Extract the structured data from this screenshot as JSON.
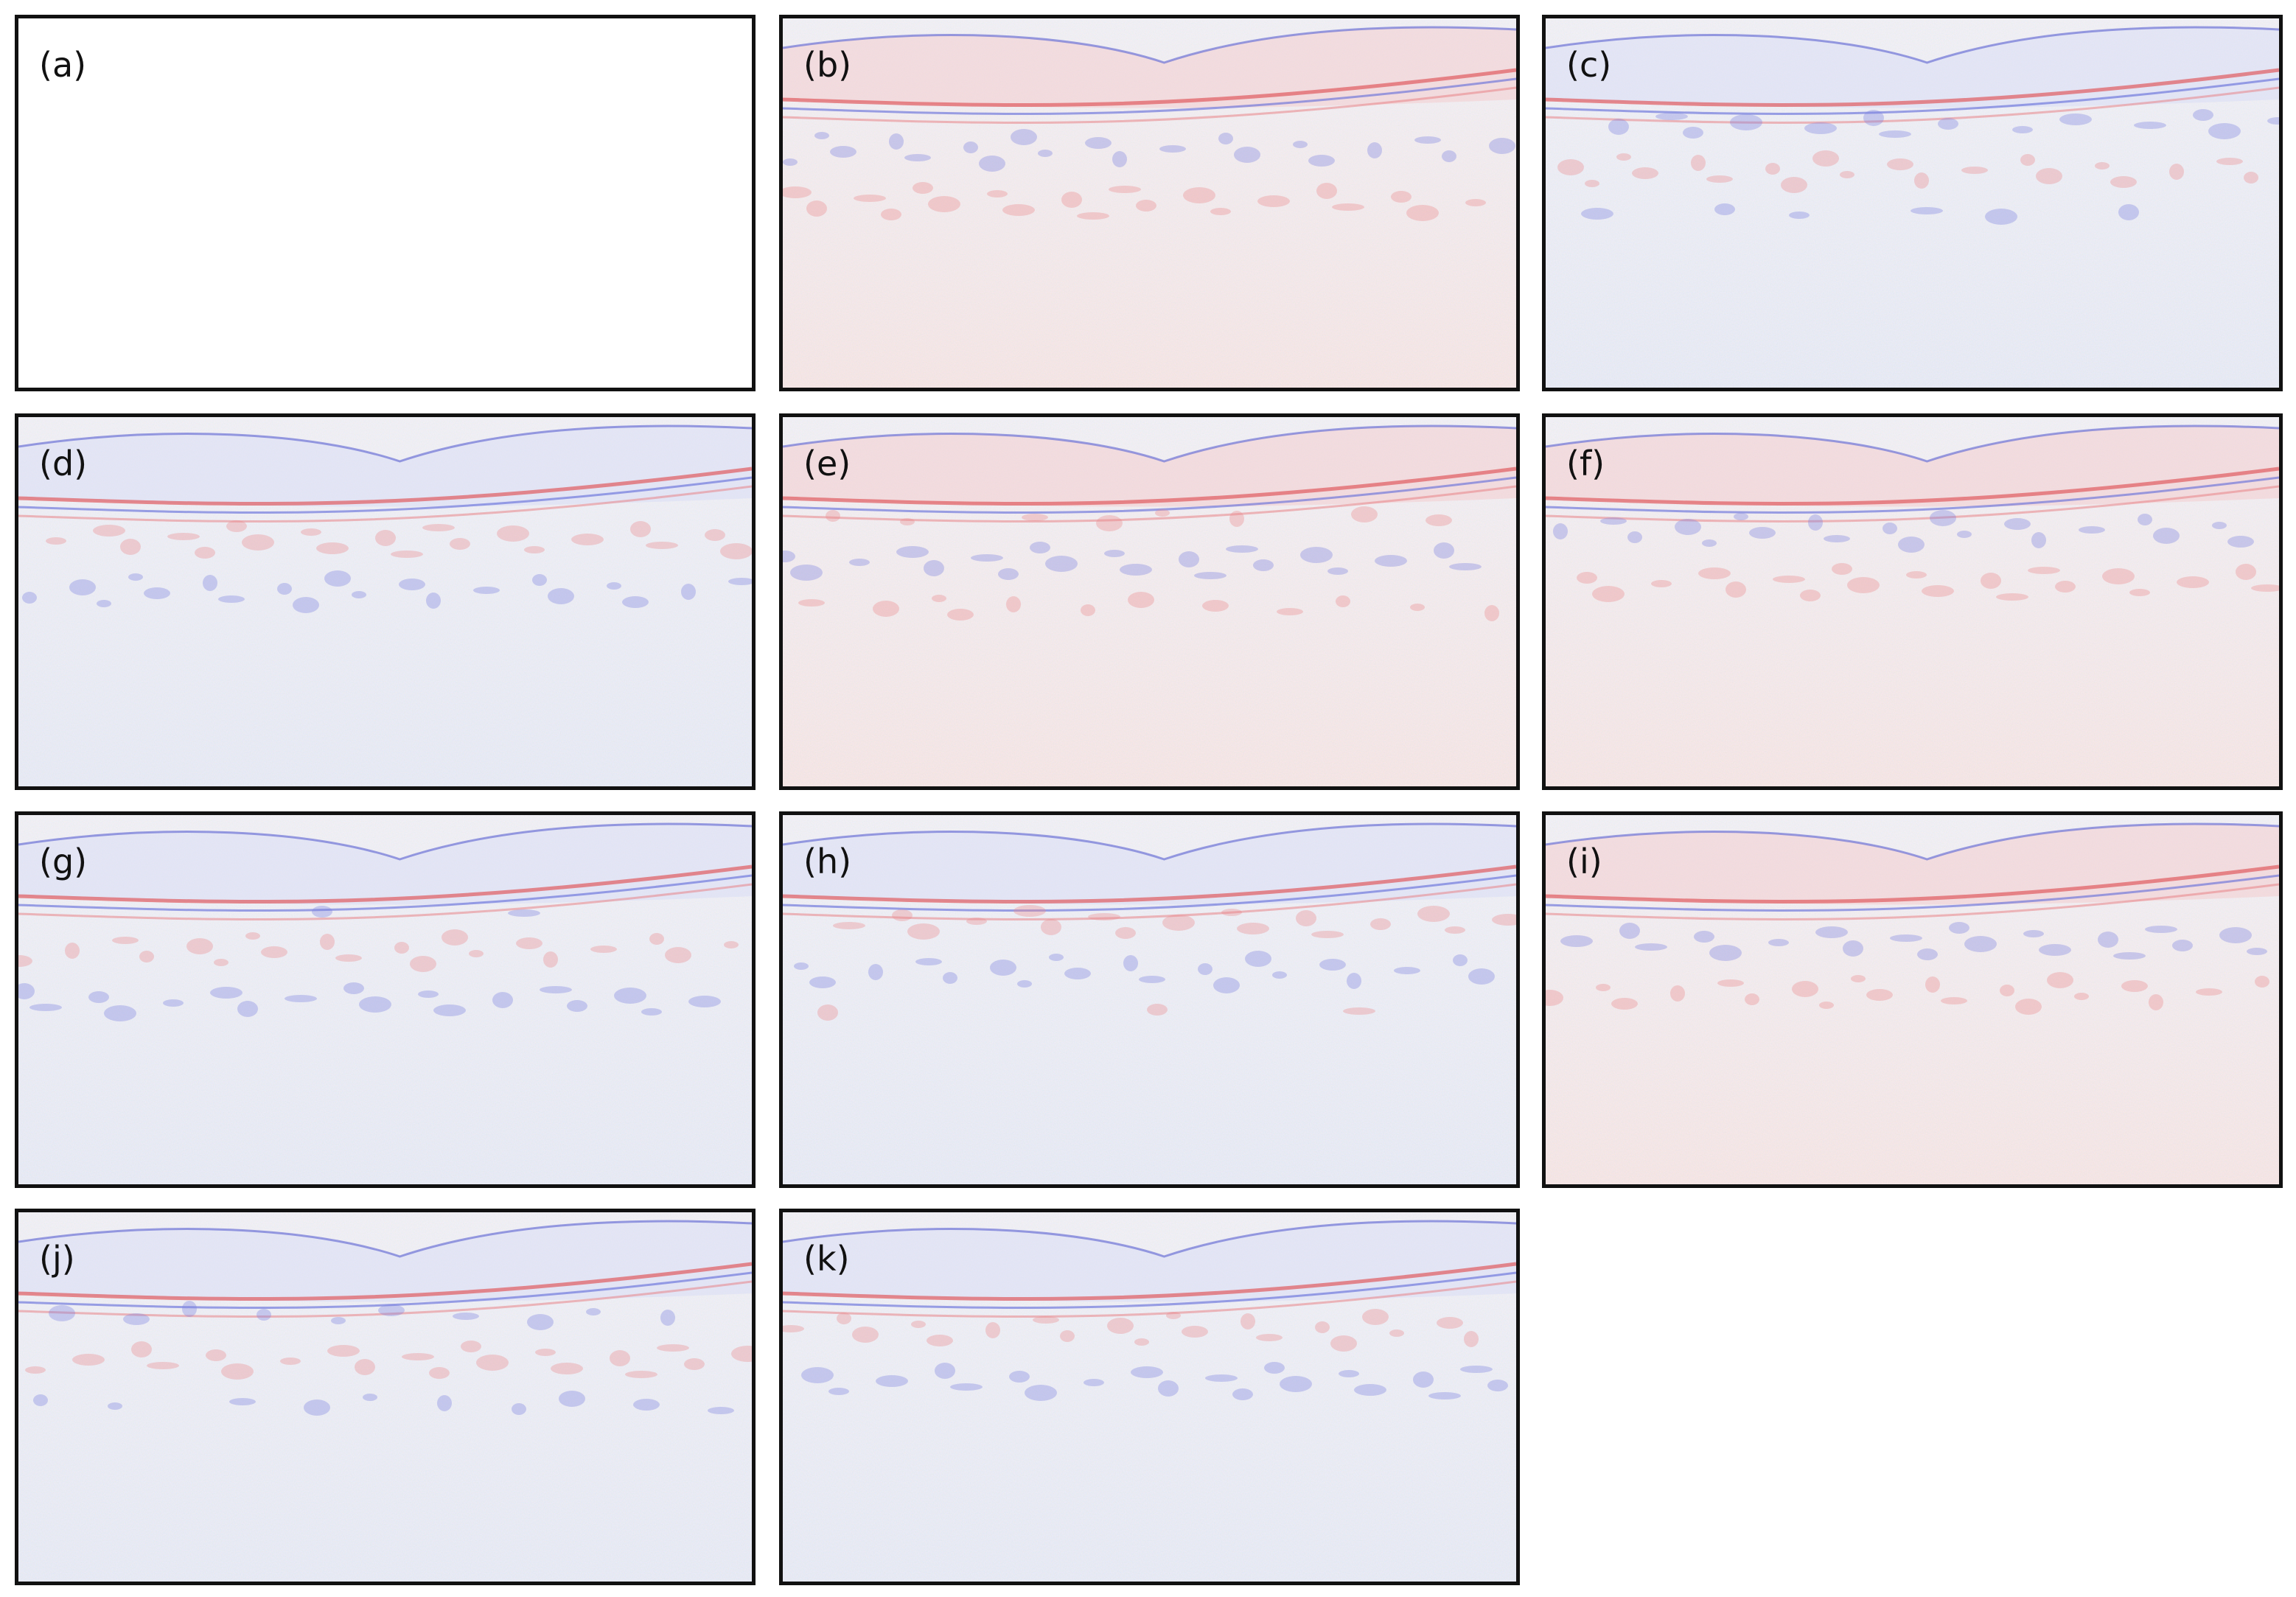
{
  "panels": [
    {
      "label": "(a)"
    },
    {
      "label": "(b)"
    },
    {
      "label": "(c)"
    },
    {
      "label": "(d)"
    },
    {
      "label": "(e)"
    },
    {
      "label": "(f)"
    },
    {
      "label": "(g)"
    },
    {
      "label": "(h)"
    },
    {
      "label": "(i)"
    },
    {
      "label": "(j)"
    },
    {
      "label": "(k)"
    }
  ]
}
